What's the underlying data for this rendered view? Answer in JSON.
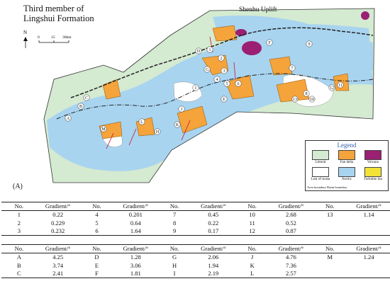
{
  "map": {
    "title_line1": "Third member of",
    "title_line2": "Lingshui Formation",
    "north": "N",
    "scale_labels": [
      "0",
      "15",
      "30km"
    ],
    "uplift_label": "Shenhu Uplift",
    "panel_label": "(A)",
    "colors": {
      "littoral": "#d4ead1",
      "fan_delta": "#f5a33b",
      "volcano": "#9b1f73",
      "neritic": "#a8d4f0",
      "turbidite_fan": "#f3e336",
      "uplift": "#ffffff"
    },
    "fan_numbers": [
      "1",
      "2",
      "3",
      "4",
      "5",
      "6",
      "7",
      "8",
      "9",
      "10",
      "11",
      "12",
      "13"
    ],
    "fan_letters": [
      "A",
      "B",
      "C",
      "D",
      "E",
      "F",
      "G",
      "H",
      "I",
      "J",
      "K",
      "L",
      "M"
    ]
  },
  "legend": {
    "title": "Legend",
    "items": [
      {
        "label": "Littoral",
        "color": "#d4ead1"
      },
      {
        "label": "Fan delta",
        "color": "#f5a33b"
      },
      {
        "label": "Volcano",
        "color": "#9b1f73"
      },
      {
        "label": "Lost of strata",
        "color": "#ffffff"
      },
      {
        "label": "Neritic",
        "color": "#a8d4f0"
      },
      {
        "label": "Turbidite fan",
        "color": "#f3e336"
      }
    ],
    "boundary_label": "Area boundary  Basin boundary"
  },
  "table1": {
    "header": [
      "No.",
      "Gradient/°",
      "No.",
      "Gradient/°",
      "No.",
      "Gradient/°",
      "No.",
      "Gradient/°",
      "No.",
      "Gradient/°"
    ],
    "rows": [
      [
        "1",
        "0.22",
        "4",
        "0.201",
        "7",
        "0.45",
        "10",
        "2.68",
        "13",
        "1.14"
      ],
      [
        "2",
        "0.229",
        "5",
        "0.64",
        "8",
        "0.22",
        "11",
        "0.52",
        "",
        ""
      ],
      [
        "3",
        "0.232",
        "6",
        "1.64",
        "9",
        "0.17",
        "12",
        "0.87",
        "",
        ""
      ]
    ]
  },
  "table2": {
    "header": [
      "No.",
      "Gradient/°",
      "No.",
      "Gradient/°",
      "No.",
      "Gradient/°",
      "No.",
      "Gradient/°",
      "No.",
      "Gradient/°"
    ],
    "rows": [
      [
        "A",
        "4.25",
        "D",
        "1.28",
        "G",
        "2.06",
        "J",
        "4.76",
        "M",
        "1.24"
      ],
      [
        "B",
        "3.74",
        "E",
        "3.06",
        "H",
        "1.94",
        "K",
        "7.36",
        "",
        ""
      ],
      [
        "C",
        "2.41",
        "F",
        "1.81",
        "I",
        "2.19",
        "L",
        "2.57",
        "",
        ""
      ]
    ]
  }
}
